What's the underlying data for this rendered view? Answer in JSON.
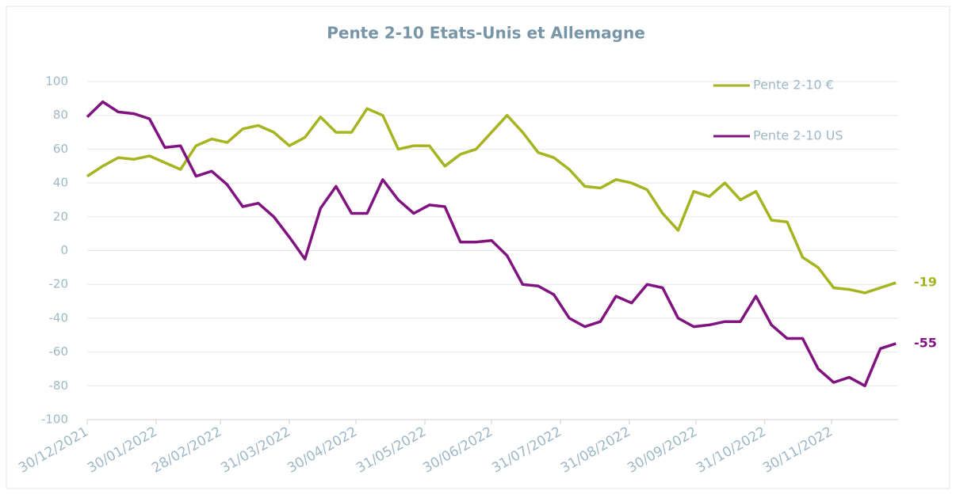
{
  "chart_data": {
    "type": "line",
    "title": "Pente 2-10 Etats-Unis et Allemagne",
    "x": [
      "30/12/2021",
      "06/01/2022",
      "13/01/2022",
      "20/01/2022",
      "27/01/2022",
      "03/02/2022",
      "10/02/2022",
      "17/02/2022",
      "24/02/2022",
      "03/03/2022",
      "10/03/2022",
      "17/03/2022",
      "24/03/2022",
      "31/03/2022",
      "07/04/2022",
      "14/04/2022",
      "21/04/2022",
      "28/04/2022",
      "05/05/2022",
      "12/05/2022",
      "19/05/2022",
      "26/05/2022",
      "02/06/2022",
      "09/06/2022",
      "16/06/2022",
      "23/06/2022",
      "30/06/2022",
      "07/07/2022",
      "14/07/2022",
      "21/07/2022",
      "28/07/2022",
      "04/08/2022",
      "11/08/2022",
      "18/08/2022",
      "25/08/2022",
      "01/09/2022",
      "08/09/2022",
      "15/09/2022",
      "22/09/2022",
      "29/09/2022",
      "06/10/2022",
      "13/10/2022",
      "20/10/2022",
      "27/10/2022",
      "03/11/2022",
      "10/11/2022",
      "17/11/2022",
      "24/11/2022",
      "01/12/2022",
      "08/12/2022",
      "15/12/2022",
      "22/12/2022",
      "29/12/2022"
    ],
    "series": [
      {
        "name": "Pente 2-10 €",
        "color": "#a5b41f",
        "values": [
          44,
          50,
          55,
          54,
          56,
          52,
          48,
          62,
          66,
          64,
          72,
          74,
          70,
          62,
          67,
          79,
          70,
          70,
          84,
          80,
          60,
          62,
          62,
          50,
          57,
          60,
          70,
          80,
          70,
          58,
          55,
          48,
          38,
          37,
          42,
          40,
          36,
          22,
          12,
          35,
          32,
          40,
          30,
          35,
          18,
          17,
          -4,
          -10,
          -22,
          -23,
          -25,
          -22,
          -19
        ]
      },
      {
        "name": "Pente 2-10 US",
        "color": "#80137f",
        "values": [
          79,
          88,
          82,
          81,
          78,
          61,
          62,
          44,
          47,
          39,
          26,
          28,
          20,
          8,
          -5,
          25,
          38,
          22,
          22,
          42,
          30,
          22,
          27,
          26,
          5,
          5,
          6,
          -3,
          -20,
          -21,
          -26,
          -40,
          -45,
          -42,
          -27,
          -31,
          -20,
          -22,
          -40,
          -45,
          -44,
          -42,
          -42,
          -27,
          -44,
          -52,
          -52,
          -70,
          -78,
          -75,
          -80,
          -58,
          -55
        ]
      }
    ],
    "xlim": [
      "30/12/2021",
      "30/12/2022"
    ],
    "xticks": [
      "30/12/2021",
      "30/01/2022",
      "28/02/2022",
      "31/03/2022",
      "30/04/2022",
      "31/05/2022",
      "30/06/2022",
      "31/07/2022",
      "31/08/2022",
      "30/09/2022",
      "31/10/2022",
      "30/11/2022"
    ],
    "ylim": [
      -100,
      100
    ],
    "yticks": [
      -100,
      -80,
      -60,
      -40,
      -20,
      0,
      20,
      40,
      60,
      80,
      100
    ],
    "grid": true,
    "legend": "upper right"
  }
}
